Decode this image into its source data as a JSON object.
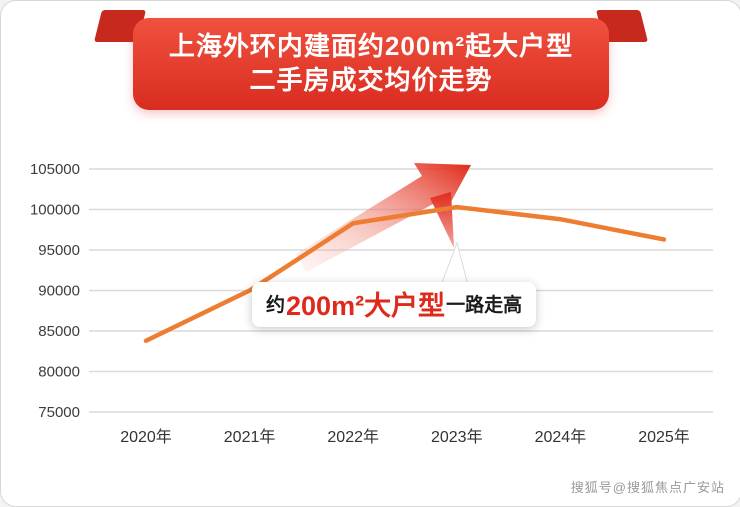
{
  "banner": {
    "line1": "上海外环内建面约200m²起大户型",
    "line2": "二手房成交均价走势"
  },
  "chart_data": {
    "type": "line",
    "title": "上海外环内建面约200m²起大户型二手房成交均价走势",
    "categories": [
      "2020年",
      "2021年",
      "2022年",
      "2023年",
      "2024年",
      "2025年"
    ],
    "values": [
      83800,
      90000,
      98300,
      100300,
      98800,
      96300
    ],
    "xlabel": "",
    "ylabel": "",
    "ylim": [
      75000,
      105000
    ],
    "yticks": [
      75000,
      80000,
      85000,
      90000,
      95000,
      100000,
      105000
    ],
    "grid": true,
    "legend": "none",
    "line_color": "#ED7D31"
  },
  "annotation": {
    "prefix": "约",
    "highlight": "200m²大户型",
    "suffix": "一路走高"
  },
  "watermark": "搜狐号@搜狐焦点广安站",
  "colors": {
    "banner_red_top": "#f0513f",
    "banner_red_bottom": "#d92c20",
    "ribbon_dark_red": "#c8291f",
    "arrow_red": "#e02917",
    "line_orange": "#ED7D31",
    "highlight_red": "#e0281c",
    "grid_gray": "#d9d9d9",
    "watermark_gray": "#9a9a9a"
  }
}
